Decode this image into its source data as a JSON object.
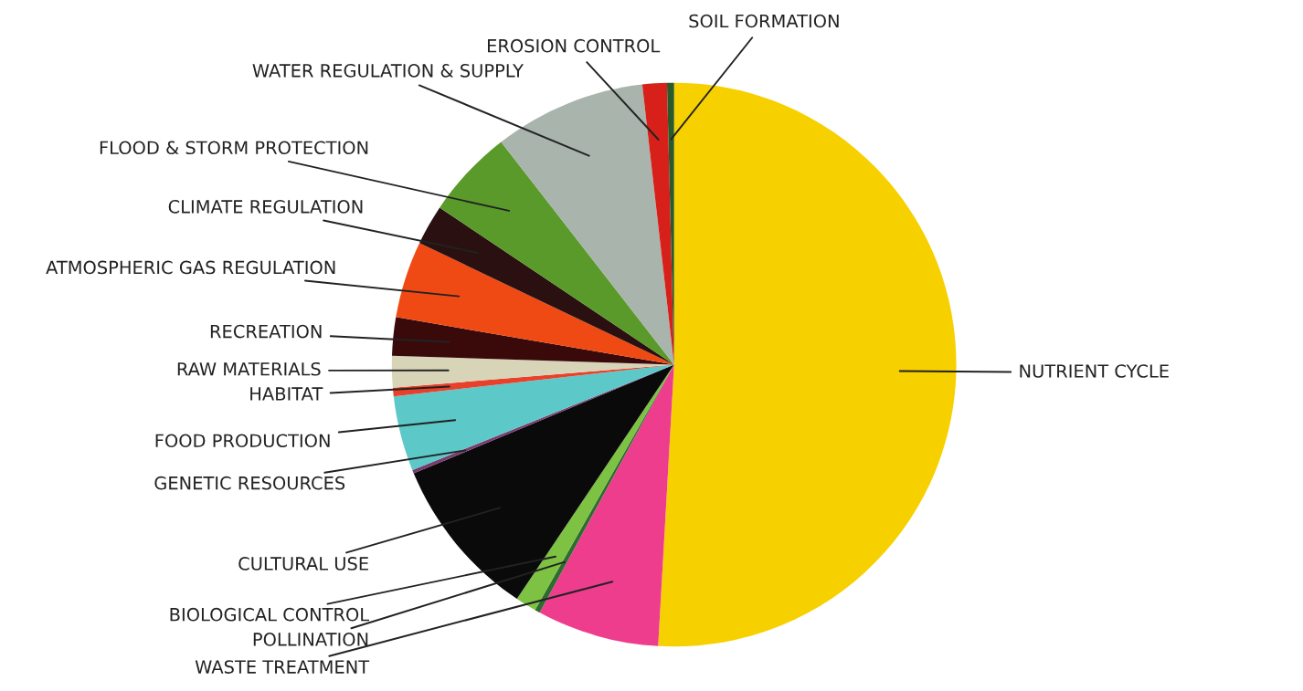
{
  "chart_data": {
    "type": "pie",
    "categories": [
      "NUTRIENT CYCLE",
      "WASTE TREATMENT",
      "POLLINATION",
      "BIOLOGICAL CONTROL",
      "CULTURAL USE",
      "GENETIC RESOURCES",
      "FOOD PRODUCTION",
      "HABITAT",
      "RAW MATERIALS",
      "RECREATION",
      "ATMOSPHERIC GAS REGULATION",
      "CLIMATE REGULATION",
      "FLOOD & STORM PROTECTION",
      "WATER REGULATION & SUPPLY",
      "EROSION CONTROL",
      "SOIL FORMATION"
    ],
    "values": [
      50.9,
      7,
      0.3,
      1.2,
      9.3,
      0.2,
      4.3,
      0.5,
      1.8,
      2.2,
      4.4,
      2.3,
      5.1,
      8.7,
      1.4,
      0.4
    ],
    "colors": [
      "#f7d000",
      "#ee3d8c",
      "#2e6b2e",
      "#7dc242",
      "#0a0a0a",
      "#7a3b6e",
      "#5cc8c8",
      "#e8402a",
      "#d8d4b8",
      "#3a0a0a",
      "#f04a14",
      "#2a1010",
      "#5a9a2a",
      "#a8b4ac",
      "#d8201a",
      "#2a5a2a"
    ]
  }
}
